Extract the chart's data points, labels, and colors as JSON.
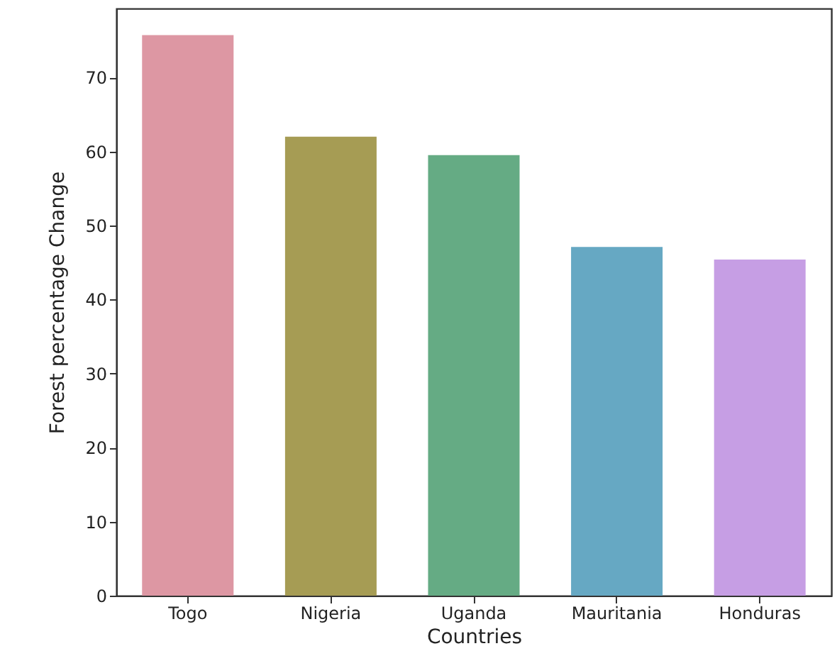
{
  "chart_data": {
    "type": "bar",
    "xlabel": "Countries",
    "ylabel": "Forest percentage Change",
    "categories": [
      "Togo",
      "Nigeria",
      "Uganda",
      "Mauritania",
      "Honduras"
    ],
    "values": [
      75.7,
      62.0,
      59.5,
      47.1,
      45.4
    ],
    "colors": [
      "#dd97a3",
      "#a69c54",
      "#65ab84",
      "#66a8c3",
      "#c69ee4"
    ],
    "ylim": [
      0,
      79.3
    ],
    "yticks": [
      0,
      10,
      20,
      30,
      40,
      50,
      60,
      70
    ],
    "grid": false
  }
}
